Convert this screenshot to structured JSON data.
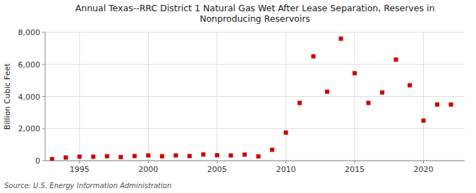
{
  "chart_data": {
    "type": "scatter",
    "title": "Annual Texas--RRC District 1 Natural Gas Wet After Lease Separation, Reserves in\nNonproducing Reservoirs",
    "ylabel": "Billion Cubic Feet",
    "source": "Source: U.S. Energy Information Administration",
    "x": [
      1993,
      1994,
      1995,
      1996,
      1997,
      1998,
      1999,
      2000,
      2001,
      2002,
      2003,
      2004,
      2005,
      2006,
      2007,
      2008,
      2009,
      2010,
      2011,
      2012,
      2013,
      2014,
      2015,
      2016,
      2017,
      2018,
      2019,
      2020,
      2021,
      2022
    ],
    "values": [
      100,
      200,
      250,
      250,
      280,
      230,
      290,
      330,
      280,
      330,
      290,
      390,
      340,
      330,
      380,
      270,
      680,
      1750,
      3600,
      6500,
      4300,
      7600,
      5450,
      3600,
      4250,
      6300,
      4700,
      2500,
      3500,
      3500
    ],
    "color": "#cc0000",
    "marker": "square",
    "xlim": [
      1992.5,
      2023
    ],
    "ylim": [
      0,
      8000
    ],
    "xticks": [
      1995,
      2000,
      2005,
      2010,
      2015,
      2020
    ],
    "yticks": [
      0,
      {
        "value": 2000,
        "label": "2,000"
      },
      {
        "value": 4000,
        "label": "4,000"
      },
      {
        "value": 6000,
        "label": "6,000"
      },
      {
        "value": 8000,
        "label": "8,000"
      }
    ],
    "grid": true
  }
}
